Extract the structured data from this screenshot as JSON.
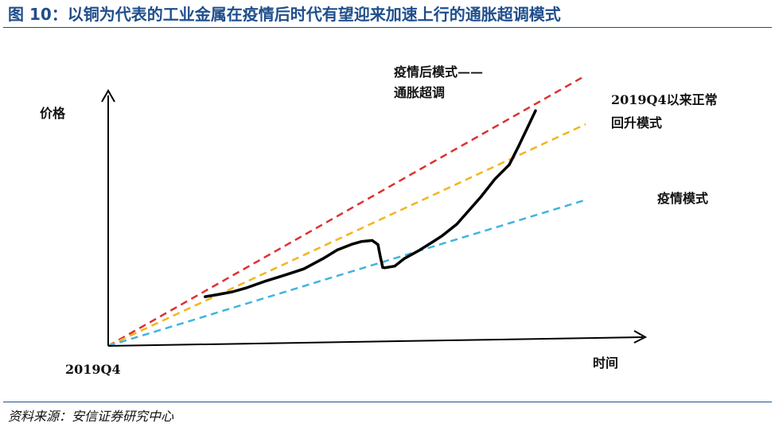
{
  "figure": {
    "title": "图 10：以铜为代表的工业金属在疫情后时代有望迎来加速上行的通胀超调模式",
    "source": "资料来源：安信证券研究中心"
  },
  "chart_data": {
    "type": "line",
    "xlabel": "时间",
    "ylabel": "价格",
    "x_start_label": "2019Q4",
    "grid": false,
    "colors": {
      "red": "#e03030",
      "yellow": "#f2b51d",
      "blue": "#3fb4e0",
      "price": "#000000"
    },
    "series": [
      {
        "name": "疫情后模式——通胀超调",
        "line_label": [
          "疫情后模式——",
          "通胀超调"
        ],
        "style": "dashed",
        "color": "#e03030",
        "x": [
          0,
          100
        ],
        "y": [
          0,
          100
        ]
      },
      {
        "name": "2019Q4以来正常回升模式",
        "line_label": [
          "2019Q4以来正常",
          "回升模式"
        ],
        "style": "dashed",
        "color": "#f2b51d",
        "x": [
          0,
          100
        ],
        "y": [
          0,
          82
        ]
      },
      {
        "name": "疫情模式",
        "line_label": [
          "疫情模式"
        ],
        "style": "dashed",
        "color": "#3fb4e0",
        "x": [
          0,
          100
        ],
        "y": [
          0,
          54
        ]
      },
      {
        "name": "price",
        "style": "solid",
        "color": "#000000",
        "x": [
          20.3,
          23,
          26,
          29,
          33,
          37,
          41,
          45,
          48,
          51,
          53,
          55.3,
          56.5,
          57.0,
          57.5,
          58,
          60,
          62,
          65,
          68,
          70,
          73,
          75.5,
          78,
          81,
          84,
          86,
          88,
          89.5
        ],
        "y": [
          18.2,
          19.0,
          20.0,
          21.5,
          24.0,
          26.2,
          28.5,
          32.3,
          35.5,
          37.6,
          38.6,
          39.0,
          37.5,
          33.0,
          29.0,
          28.9,
          29.5,
          32.3,
          35.2,
          38.5,
          40.8,
          45.0,
          50.0,
          55.0,
          61.7,
          67.0,
          74.0,
          81.4,
          87.0
        ]
      }
    ]
  }
}
